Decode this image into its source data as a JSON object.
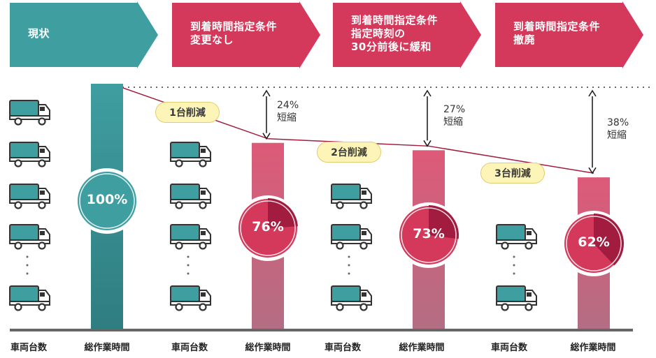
{
  "colors": {
    "teal": "#3f9ea0",
    "teal_dark": "#2f7d80",
    "crimson": "#d4385a",
    "crimson_dark": "#a11c3e",
    "bar_pink": "#dd5a78",
    "bar_mauve": "#b36e84",
    "pill_fill": "#fdf4b8"
  },
  "scenarios": [
    {
      "id": "current",
      "header": "現状",
      "color": "teal"
    },
    {
      "id": "unchanged",
      "header": "到着時間指定条件\n変更なし",
      "color": "crimson"
    },
    {
      "id": "relaxed",
      "header": "到着時間指定条件\n指定時刻の\n30分前後に緩和",
      "color": "crimson"
    },
    {
      "id": "abolished",
      "header": "到着時間指定条件\n撤廃",
      "color": "crimson"
    }
  ],
  "chart_data": {
    "type": "bar",
    "categories": [
      "現状",
      "到着時間指定条件 変更なし",
      "到着時間指定条件 指定時刻の 30分前後に緩和",
      "到着時間指定条件 撤廃"
    ],
    "series": [
      {
        "name": "総作業時間",
        "values": [
          100,
          76,
          73,
          62
        ],
        "unit": "%"
      }
    ],
    "vehicle_icon_count_shown": [
      5,
      4,
      3,
      2
    ],
    "vehicle_reduction_labels": [
      "1台削減",
      "2台削減",
      "3台削減"
    ],
    "reduction_labels": [
      {
        "percent": "24%",
        "text": "短縮"
      },
      {
        "percent": "27%",
        "text": "短縮"
      },
      {
        "percent": "38%",
        "text": "短縮"
      }
    ],
    "value_labels": [
      "100%",
      "76%",
      "73%",
      "62%"
    ],
    "xlabels": [
      "車両台数",
      "総作業時間",
      "車両台数",
      "総作業時間",
      "車両台数",
      "総作業時間",
      "車両台数",
      "総作業時間"
    ],
    "ylim": [
      0,
      100
    ],
    "grid": false,
    "legend": "none"
  }
}
